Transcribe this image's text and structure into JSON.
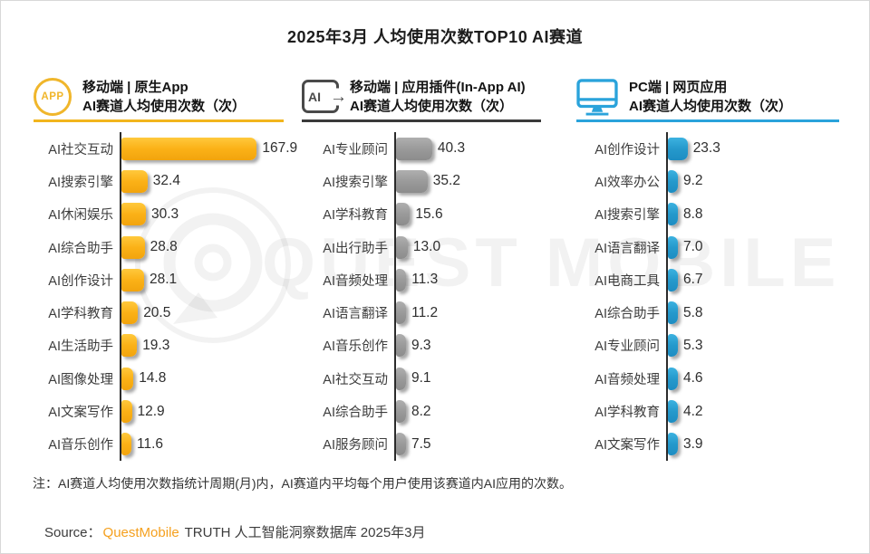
{
  "title": "2025年3月 人均使用次数TOP10 AI赛道",
  "sections": [
    {
      "icon": "app-circle-icon",
      "icon_text": "APP",
      "line1": "移动端 | 原生App",
      "line2": "AI赛道人均使用次数（次）",
      "accent_color": "#F2B51D"
    },
    {
      "icon": "in-app-ai-icon",
      "icon_text": "AI",
      "line1": "移动端 | 应用插件(In-App AI)",
      "line2": "AI赛道人均使用次数（次）",
      "accent_color": "#3A3A3A"
    },
    {
      "icon": "pc-monitor-icon",
      "line1": "PC端 | 网页应用",
      "line2": "AI赛道人均使用次数（次）",
      "accent_color": "#2AA3DB"
    }
  ],
  "chart_data": [
    {
      "type": "bar",
      "orientation": "horizontal",
      "panel": "移动端 | 原生App AI赛道人均使用次数（次）",
      "unit": "次",
      "bar_color": "#FBB117",
      "categories": [
        "AI社交互动",
        "AI搜索引擎",
        "AI休闲娱乐",
        "AI综合助手",
        "AI创作设计",
        "AI学科教育",
        "AI生活助手",
        "AI图像处理",
        "AI文案写作",
        "AI音乐创作"
      ],
      "values": [
        167.9,
        32.4,
        30.3,
        28.8,
        28.1,
        20.5,
        19.3,
        14.8,
        12.9,
        11.6
      ],
      "xlim": [
        0,
        170
      ],
      "grid": false,
      "value_labels": true
    },
    {
      "type": "bar",
      "orientation": "horizontal",
      "panel": "移动端 | 应用插件(In-App AI) AI赛道人均使用次数（次）",
      "unit": "次",
      "bar_color": "#9A9A9A",
      "categories": [
        "AI专业顾问",
        "AI搜索引擎",
        "AI学科教育",
        "AI出行助手",
        "AI音频处理",
        "AI语言翻译",
        "AI音乐创作",
        "AI社交互动",
        "AI综合助手",
        "AI服务顾问"
      ],
      "values": [
        40.3,
        35.2,
        15.6,
        13.0,
        11.3,
        11.2,
        9.3,
        9.1,
        8.2,
        7.5
      ],
      "xlim": [
        0,
        41
      ],
      "grid": false,
      "value_labels": true
    },
    {
      "type": "bar",
      "orientation": "horizontal",
      "panel": "PC端 | 网页应用 AI赛道人均使用次数（次）",
      "unit": "次",
      "bar_color": "#2599CC",
      "categories": [
        "AI创作设计",
        "AI效率办公",
        "AI搜索引擎",
        "AI语言翻译",
        "AI电商工具",
        "AI综合助手",
        "AI专业顾问",
        "AI音频处理",
        "AI学科教育",
        "AI文案写作"
      ],
      "values": [
        23.3,
        9.2,
        8.8,
        7.0,
        6.7,
        5.8,
        5.3,
        4.6,
        4.2,
        3.9
      ],
      "xlim": [
        0,
        24
      ],
      "grid": false,
      "value_labels": true
    }
  ],
  "note": "注：AI赛道人均使用次数指统计周期(月)内，AI赛道内平均每个用户使用该赛道内AI应用的次数。",
  "source": {
    "prefix": "Source：",
    "brand": "QuestMobile",
    "suffix": " TRUTH 人工智能洞察数据库 2025年3月",
    "brand_color": "#F5A01E"
  },
  "watermark": {
    "text": "QUEST MOBILE",
    "logo": "questmobile-q-logo"
  }
}
